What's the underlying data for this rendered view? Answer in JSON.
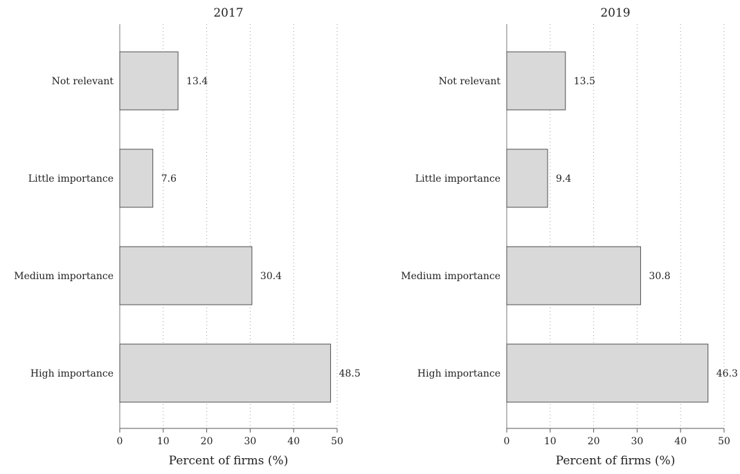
{
  "chart_data": [
    {
      "type": "bar",
      "orientation": "horizontal",
      "title": "2017",
      "categories": [
        "Not relevant",
        "Little importance",
        "Medium importance",
        "High importance"
      ],
      "values": [
        13.4,
        7.6,
        30.4,
        48.5
      ],
      "value_labels": [
        "13.4",
        "7.6",
        "30.4",
        "48.5"
      ],
      "xlabel": "Percent of firms (%)",
      "ylabel": "",
      "xlim": [
        0,
        50
      ],
      "xticks": [
        "0",
        "10",
        "20",
        "30",
        "40",
        "50"
      ],
      "grid": "vertical dotted",
      "bar_color": "#d9d9d9",
      "edge_color": "#4d4d4d"
    },
    {
      "type": "bar",
      "orientation": "horizontal",
      "title": "2019",
      "categories": [
        "Not relevant",
        "Little importance",
        "Medium importance",
        "High importance"
      ],
      "values": [
        13.5,
        9.4,
        30.8,
        46.3
      ],
      "value_labels": [
        "13.5",
        "9.4",
        "30.8",
        "46.3"
      ],
      "xlabel": "Percent of firms (%)",
      "ylabel": "",
      "xlim": [
        0,
        50
      ],
      "xticks": [
        "0",
        "10",
        "20",
        "30",
        "40",
        "50"
      ],
      "grid": "vertical dotted",
      "bar_color": "#d9d9d9",
      "edge_color": "#4d4d4d"
    }
  ]
}
